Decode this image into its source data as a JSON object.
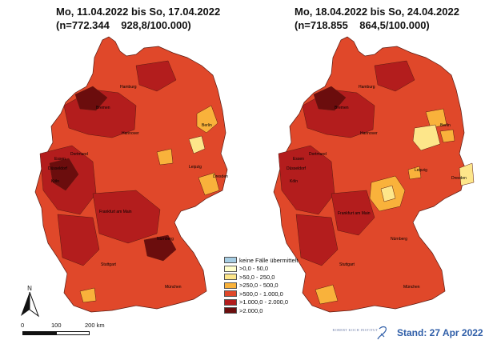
{
  "maps": [
    {
      "title_line1": "Mo, 11.04.2022 bis So, 17.04.2022",
      "title_line2": "(n=772.344    928,8/100.000)"
    },
    {
      "title_line1": "Mo, 18.04.2022 bis So, 24.04.2022",
      "title_line2": "(n=718.855    864,5/100.000)"
    }
  ],
  "cities": {
    "hamburg": "Hamburg",
    "bremen": "Bremen",
    "hannover": "Hannover",
    "berlin": "Berlin",
    "dortmund": "Dortmund",
    "essen": "Essen",
    "duesseldorf": "Düsseldorf",
    "koeln": "Köln",
    "leipzig": "Leipzig",
    "dresden": "Dresden",
    "frankfurt": "Frankfurt am Main",
    "nuernberg": "Nürnberg",
    "stuttgart": "Stuttgart",
    "muenchen": "München"
  },
  "legend": [
    {
      "label": "keine Fälle übermittelt",
      "color": "#a6cde3"
    },
    {
      "label": ">0,0 - 50,0",
      "color": "#ffffcc"
    },
    {
      "label": ">50,0 - 250,0",
      "color": "#fde68a"
    },
    {
      "label": ">250,0 - 500,0",
      "color": "#f9b23b"
    },
    {
      "label": ">500,0 - 1.000,0",
      "color": "#e0482a"
    },
    {
      "label": ">1.000,0 - 2.000,0",
      "color": "#b31d1d"
    },
    {
      "label": ">2.000,0",
      "color": "#6b0d0d"
    }
  ],
  "scale": {
    "tick0": "0",
    "tick1": "100",
    "tick2": "200 km"
  },
  "north_label": "N",
  "logo_text": "ROBERT KOCH INSTITUT",
  "stand": "Stand: 27 Apr 2022",
  "colors": {
    "base": "#e0482a",
    "high": "#b31d1d",
    "veryhigh": "#6b0d0d",
    "mid": "#f9b23b",
    "low": "#fde68a",
    "border": "#5a1a10"
  }
}
